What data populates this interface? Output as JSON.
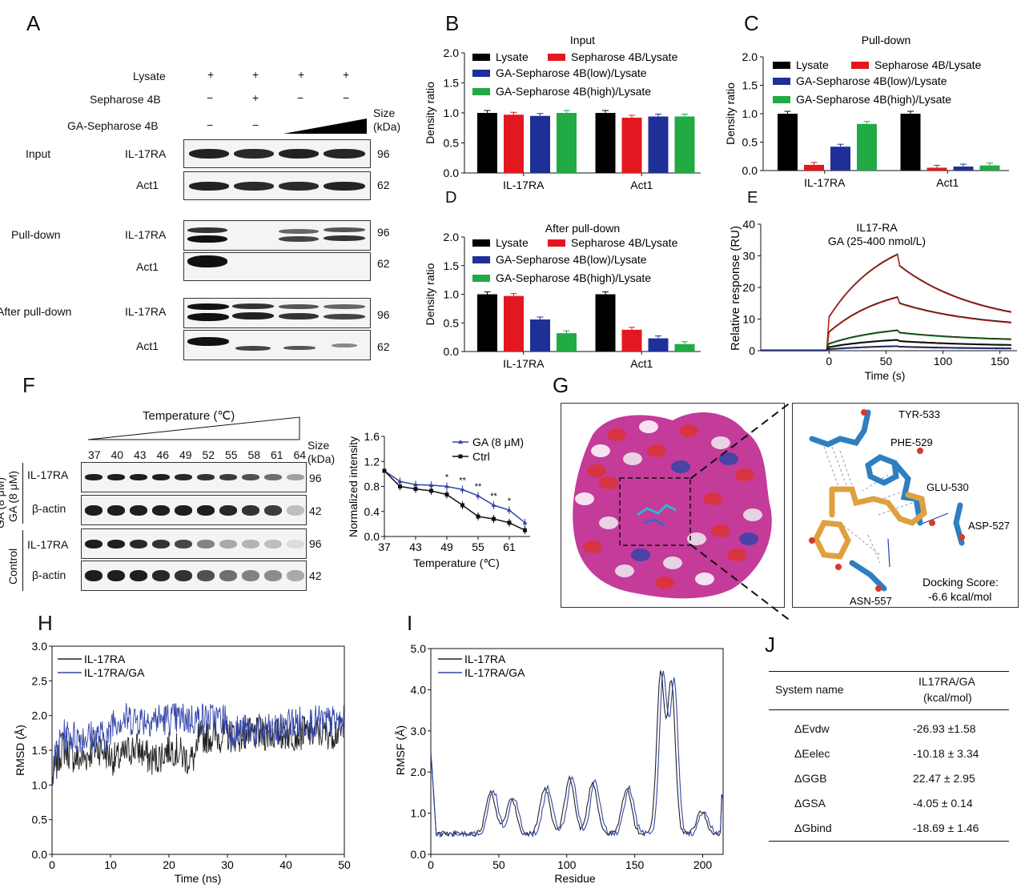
{
  "panels": {
    "A": "A",
    "B": "B",
    "C": "C",
    "D": "D",
    "E": "E",
    "F": "F",
    "G": "G",
    "H": "H",
    "I": "I",
    "J": "J"
  },
  "panelA": {
    "conditions": [
      {
        "label": "Lysate",
        "marks": [
          "+",
          "+",
          "+",
          "+"
        ]
      },
      {
        "label": "Sepharose 4B",
        "marks": [
          "−",
          "+",
          "−",
          "−"
        ]
      },
      {
        "label": "GA-Sepharose 4B",
        "marks": [
          "−",
          "−",
          "",
          ""
        ]
      }
    ],
    "size_header": "Size\n(kDa)",
    "groups": [
      {
        "label": "Input",
        "rows": [
          {
            "protein": "IL-17RA",
            "kda": "96"
          },
          {
            "protein": "Act1",
            "kda": "62"
          }
        ]
      },
      {
        "label": "Pull-down",
        "rows": [
          {
            "protein": "IL-17RA",
            "kda": "96"
          },
          {
            "protein": "Act1",
            "kda": "62"
          }
        ]
      },
      {
        "label": "After pull-down",
        "rows": [
          {
            "protein": "IL-17RA",
            "kda": "96"
          },
          {
            "protein": "Act1",
            "kda": "62"
          }
        ]
      }
    ]
  },
  "colors": {
    "lysate": "#000000",
    "seph": "#e3171f",
    "ga_low": "#1f2f98",
    "ga_high": "#22aa44",
    "blue_line": "#3445a8",
    "red": "#e3171f",
    "magenta": "#c43b9a"
  },
  "legend_bar": [
    "Lysate",
    "Sepharose 4B/Lysate",
    "GA-Sepharose 4B(low)/Lysate",
    "GA-Sepharose 4B(high)/Lysate"
  ],
  "chart_data": [
    {
      "id": "B",
      "type": "bar",
      "title": "Input",
      "ylabel": "Density ratio",
      "ylim": [
        0,
        2.0
      ],
      "yticks": [
        "0.0",
        "0.5",
        "1.0",
        "1.5",
        "2.0"
      ],
      "categories": [
        "IL-17RA",
        "Act1"
      ],
      "series": [
        {
          "name": "Lysate",
          "values": [
            1.0,
            1.0
          ]
        },
        {
          "name": "Sepharose 4B/Lysate",
          "values": [
            0.97,
            0.92
          ]
        },
        {
          "name": "GA-Sepharose 4B(low)/Lysate",
          "values": [
            0.95,
            0.94
          ]
        },
        {
          "name": "GA-Sepharose 4B(high)/Lysate",
          "values": [
            1.0,
            0.94
          ]
        }
      ]
    },
    {
      "id": "C",
      "type": "bar",
      "title": "Pull-down",
      "ylabel": "Density ratio",
      "ylim": [
        0,
        2.0
      ],
      "yticks": [
        "0.0",
        "0.5",
        "1.0",
        "1.5",
        "2.0"
      ],
      "categories": [
        "IL-17RA",
        "Act1"
      ],
      "series": [
        {
          "name": "Lysate",
          "values": [
            1.0,
            1.0
          ]
        },
        {
          "name": "Sepharose 4B/Lysate",
          "values": [
            0.1,
            0.05
          ]
        },
        {
          "name": "GA-Sepharose 4B(low)/Lysate",
          "values": [
            0.42,
            0.07
          ]
        },
        {
          "name": "GA-Sepharose 4B(high)/Lysate",
          "values": [
            0.82,
            0.09
          ]
        }
      ]
    },
    {
      "id": "D",
      "type": "bar",
      "title": "After pull-down",
      "ylabel": "Density ratio",
      "ylim": [
        0,
        2.0
      ],
      "yticks": [
        "0.0",
        "0.5",
        "1.0",
        "1.5",
        "2.0"
      ],
      "categories": [
        "IL-17RA",
        "Act1"
      ],
      "series": [
        {
          "name": "Lysate",
          "values": [
            1.0,
            1.0
          ]
        },
        {
          "name": "Sepharose 4B/Lysate",
          "values": [
            0.97,
            0.38
          ]
        },
        {
          "name": "GA-Sepharose 4B(low)/Lysate",
          "values": [
            0.56,
            0.23
          ]
        },
        {
          "name": "GA-Sepharose 4B(high)/Lysate",
          "values": [
            0.32,
            0.13
          ]
        }
      ]
    },
    {
      "id": "E",
      "type": "line",
      "title": "IL17-RA\nGA (25-400 nmol/L)",
      "xlabel": "Time (s)",
      "ylabel": "Relative response (RU)",
      "xlim": [
        -60,
        165
      ],
      "ylim": [
        0,
        40
      ],
      "xticks": [
        "0",
        "50",
        "100",
        "150"
      ],
      "yticks": [
        "0",
        "10",
        "20",
        "30",
        "40"
      ],
      "series": [
        {
          "peak": 30.5,
          "end": 7.5
        },
        {
          "peak": 17,
          "end": 7
        },
        {
          "peak": 6.5,
          "end": 3
        },
        {
          "peak": 3.5,
          "end": 1.5
        },
        {
          "peak": 1.5,
          "end": 0.6
        }
      ]
    },
    {
      "id": "F",
      "type": "line",
      "xlabel": "Temperature (℃)",
      "ylabel": "Normalized intensity",
      "ylim": [
        0,
        1.6
      ],
      "yticks": [
        "0.0",
        "0.4",
        "0.8",
        "1.2",
        "1.6"
      ],
      "xticks": [
        "37",
        "43",
        "49",
        "55",
        "61"
      ],
      "x": [
        37,
        40,
        43,
        46,
        49,
        52,
        55,
        58,
        61,
        64
      ],
      "series": [
        {
          "name": "GA (8 μM)",
          "values": [
            1.05,
            0.88,
            0.83,
            0.82,
            0.8,
            0.75,
            0.65,
            0.5,
            0.42,
            0.22
          ]
        },
        {
          "name": "Ctrl",
          "values": [
            1.05,
            0.8,
            0.76,
            0.73,
            0.67,
            0.5,
            0.32,
            0.28,
            0.22,
            0.1
          ]
        }
      ],
      "annotations": [
        "*",
        "**",
        "**",
        "**",
        "*"
      ]
    },
    {
      "id": "H",
      "type": "line",
      "xlabel": "Time (ns)",
      "ylabel": "RMSD (Å)",
      "xlim": [
        0,
        50
      ],
      "ylim": [
        0,
        3.0
      ],
      "xticks": [
        "0",
        "10",
        "20",
        "30",
        "40",
        "50"
      ],
      "yticks": [
        "0.0",
        "0.5",
        "1.0",
        "1.5",
        "2.0",
        "2.5",
        "3.0"
      ],
      "series": [
        {
          "name": "IL-17RA",
          "mean": 1.65
        },
        {
          "name": "IL-17RA/GA",
          "mean": 1.9
        }
      ]
    },
    {
      "id": "I",
      "type": "line",
      "xlabel": "Residue",
      "ylabel": "RMSF (Å)",
      "xlim": [
        0,
        215
      ],
      "ylim": [
        0,
        5.0
      ],
      "xticks": [
        "0",
        "50",
        "100",
        "150",
        "200"
      ],
      "yticks": [
        "0.0",
        "1.0",
        "2.0",
        "3.0",
        "4.0",
        "5.0"
      ],
      "series": [
        {
          "name": "IL-17RA"
        },
        {
          "name": "IL-17RA/GA"
        }
      ],
      "peaks": [
        [
          45,
          1.55
        ],
        [
          60,
          1.4
        ],
        [
          85,
          1.6
        ],
        [
          103,
          1.85
        ],
        [
          120,
          1.75
        ],
        [
          145,
          1.6
        ],
        [
          170,
          4.4
        ],
        [
          178,
          4.2
        ],
        [
          200,
          1.05
        ]
      ]
    }
  ],
  "panelF": {
    "temp_title": "Temperature (℃)",
    "temps": [
      "37",
      "40",
      "43",
      "46",
      "49",
      "52",
      "55",
      "58",
      "61",
      "64"
    ],
    "size_header": "Size\n(kDa)",
    "group_labels": [
      "GA (8 μM)",
      "Control"
    ],
    "rows": [
      {
        "protein": "IL-17RA",
        "kda": "96"
      },
      {
        "protein": "β-actin",
        "kda": "42"
      },
      {
        "protein": "IL-17RA",
        "kda": "96"
      },
      {
        "protein": "β-actin",
        "kda": "42"
      }
    ]
  },
  "panelG": {
    "residues": [
      "TYR-533",
      "PHE-529",
      "GLU-530",
      "ASP-527",
      "ASN-557"
    ],
    "docking": "Docking Score:",
    "docking_value": "-6.6 kcal/mol"
  },
  "panelJ": {
    "header": [
      "System name",
      "IL17RA/GA"
    ],
    "unit": "(kcal/mol)",
    "rows": [
      [
        "ΔEvdw",
        "-26.93 ±1.58"
      ],
      [
        "ΔEelec",
        "-10.18 ± 3.34"
      ],
      [
        "ΔGGB",
        "22.47 ± 2.95"
      ],
      [
        "ΔGSA",
        "-4.05 ± 0.14"
      ],
      [
        "ΔGbind",
        "-18.69 ± 1.46"
      ]
    ]
  }
}
